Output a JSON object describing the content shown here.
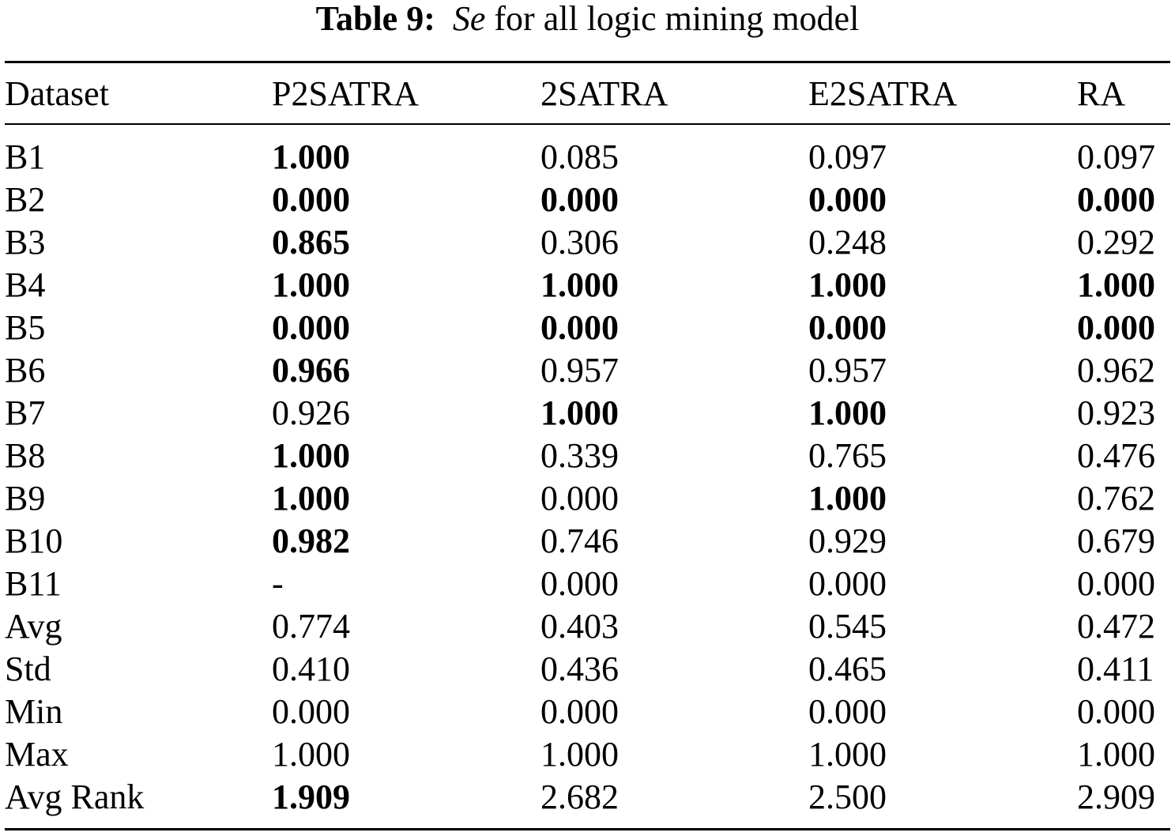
{
  "caption": {
    "label": "Table 9:",
    "symbol": "Se",
    "text": "for all logic mining model"
  },
  "table": {
    "headers": [
      "Dataset",
      "P2SATRA",
      "2SATRA",
      "E2SATRA",
      "RA"
    ],
    "rows": [
      {
        "label": "B1",
        "cells": [
          {
            "v": "1.000",
            "b": true
          },
          {
            "v": "0.085",
            "b": false
          },
          {
            "v": "0.097",
            "b": false
          },
          {
            "v": "0.097",
            "b": false
          }
        ]
      },
      {
        "label": "B2",
        "cells": [
          {
            "v": "0.000",
            "b": true
          },
          {
            "v": "0.000",
            "b": true
          },
          {
            "v": "0.000",
            "b": true
          },
          {
            "v": "0.000",
            "b": true
          }
        ]
      },
      {
        "label": "B3",
        "cells": [
          {
            "v": "0.865",
            "b": true
          },
          {
            "v": "0.306",
            "b": false
          },
          {
            "v": "0.248",
            "b": false
          },
          {
            "v": "0.292",
            "b": false
          }
        ]
      },
      {
        "label": "B4",
        "cells": [
          {
            "v": "1.000",
            "b": true
          },
          {
            "v": "1.000",
            "b": true
          },
          {
            "v": "1.000",
            "b": true
          },
          {
            "v": "1.000",
            "b": true
          }
        ]
      },
      {
        "label": "B5",
        "cells": [
          {
            "v": "0.000",
            "b": true
          },
          {
            "v": "0.000",
            "b": true
          },
          {
            "v": "0.000",
            "b": true
          },
          {
            "v": "0.000",
            "b": true
          }
        ]
      },
      {
        "label": "B6",
        "cells": [
          {
            "v": "0.966",
            "b": true
          },
          {
            "v": "0.957",
            "b": false
          },
          {
            "v": "0.957",
            "b": false
          },
          {
            "v": "0.962",
            "b": false
          }
        ]
      },
      {
        "label": "B7",
        "cells": [
          {
            "v": "0.926",
            "b": false
          },
          {
            "v": "1.000",
            "b": true
          },
          {
            "v": "1.000",
            "b": true
          },
          {
            "v": "0.923",
            "b": false
          }
        ]
      },
      {
        "label": "B8",
        "cells": [
          {
            "v": "1.000",
            "b": true
          },
          {
            "v": "0.339",
            "b": false
          },
          {
            "v": "0.765",
            "b": false
          },
          {
            "v": "0.476",
            "b": false
          }
        ]
      },
      {
        "label": "B9",
        "cells": [
          {
            "v": "1.000",
            "b": true
          },
          {
            "v": "0.000",
            "b": false
          },
          {
            "v": "1.000",
            "b": true
          },
          {
            "v": "0.762",
            "b": false
          }
        ]
      },
      {
        "label": "B10",
        "cells": [
          {
            "v": "0.982",
            "b": true
          },
          {
            "v": "0.746",
            "b": false
          },
          {
            "v": "0.929",
            "b": false
          },
          {
            "v": "0.679",
            "b": false
          }
        ]
      },
      {
        "label": "B11",
        "cells": [
          {
            "v": "-",
            "b": false
          },
          {
            "v": "0.000",
            "b": false
          },
          {
            "v": "0.000",
            "b": false
          },
          {
            "v": "0.000",
            "b": false
          }
        ]
      },
      {
        "label": "Avg",
        "cells": [
          {
            "v": "0.774",
            "b": false
          },
          {
            "v": "0.403",
            "b": false
          },
          {
            "v": "0.545",
            "b": false
          },
          {
            "v": "0.472",
            "b": false
          }
        ]
      },
      {
        "label": "Std",
        "cells": [
          {
            "v": "0.410",
            "b": false
          },
          {
            "v": "0.436",
            "b": false
          },
          {
            "v": "0.465",
            "b": false
          },
          {
            "v": "0.411",
            "b": false
          }
        ]
      },
      {
        "label": "Min",
        "cells": [
          {
            "v": "0.000",
            "b": false
          },
          {
            "v": "0.000",
            "b": false
          },
          {
            "v": "0.000",
            "b": false
          },
          {
            "v": "0.000",
            "b": false
          }
        ]
      },
      {
        "label": "Max",
        "cells": [
          {
            "v": "1.000",
            "b": false
          },
          {
            "v": "1.000",
            "b": false
          },
          {
            "v": "1.000",
            "b": false
          },
          {
            "v": "1.000",
            "b": false
          }
        ]
      },
      {
        "label": "Avg Rank",
        "cells": [
          {
            "v": "1.909",
            "b": true
          },
          {
            "v": "2.682",
            "b": false
          },
          {
            "v": "2.500",
            "b": false
          },
          {
            "v": "2.909",
            "b": false
          }
        ]
      }
    ]
  }
}
